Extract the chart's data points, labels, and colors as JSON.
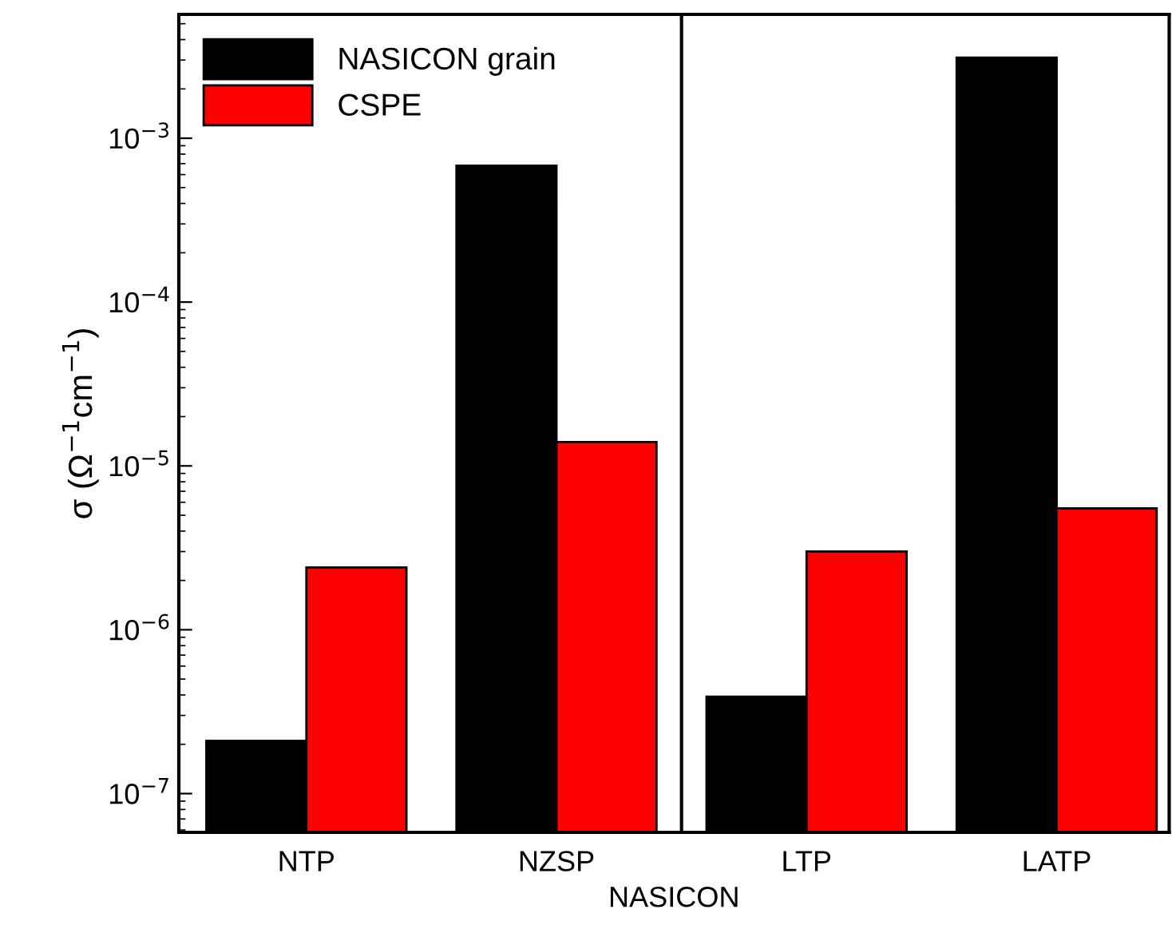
{
  "chart_data": {
    "type": "bar",
    "xlabel": "NASICON",
    "ylabel": "σ (Ω$^{−1}$cm$^{−1}$)",
    "categories": [
      "NTP",
      "NZSP",
      "LTP",
      "LATP"
    ],
    "series": [
      {
        "name": "NASICON grain",
        "color": "#000000",
        "values": [
          2.1e-07,
          0.00068,
          3.9e-07,
          0.0031
        ]
      },
      {
        "name": "CSPE",
        "color": "#ff0000",
        "values": [
          2.4e-06,
          1.4e-05,
          3e-06,
          5.5e-06
        ]
      }
    ],
    "log": "y",
    "ylim": [
      5.8e-08,
      0.0057
    ],
    "yticks": [
      {
        "value": 1e-07,
        "label": "10$^{−7}$"
      },
      {
        "value": 1e-06,
        "label": "10$^{−6}$"
      },
      {
        "value": 1e-05,
        "label": "10$^{−5}$"
      },
      {
        "value": 0.0001,
        "label": "10$^{−4}$"
      },
      {
        "value": 0.001,
        "label": "10$^{−3}$"
      }
    ],
    "legend": "top left",
    "grid": false
  }
}
